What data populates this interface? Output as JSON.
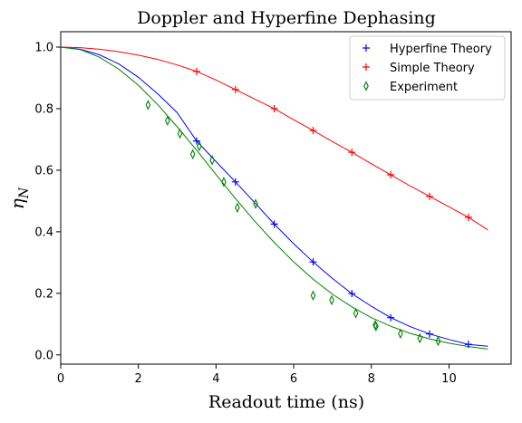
{
  "chart_data": {
    "type": "scatter",
    "title": "Doppler and Hyperfine Dephasing",
    "xlabel": "Readout time (ns)",
    "ylabel": "η_N",
    "xlim": [
      0,
      11.6
    ],
    "ylim": [
      -0.03,
      1.05
    ],
    "x_ticks": [
      "0",
      "2",
      "4",
      "6",
      "8",
      "10"
    ],
    "y_ticks": [
      "0.0",
      "0.2",
      "0.4",
      "0.6",
      "0.8",
      "1.0"
    ],
    "legend_position": "top-right",
    "grid": false,
    "series": [
      {
        "name": "Hyperfine Theory",
        "color": "#0000ff",
        "marker": "plus",
        "points": [
          [
            3.5,
            0.695
          ],
          [
            4.5,
            0.562
          ],
          [
            5.5,
            0.425
          ],
          [
            6.5,
            0.302
          ],
          [
            7.5,
            0.199
          ],
          [
            8.5,
            0.121
          ],
          [
            9.5,
            0.068
          ],
          [
            10.5,
            0.034
          ]
        ],
        "curve": [
          [
            0.0,
            1.0
          ],
          [
            0.5,
            0.993
          ],
          [
            1.0,
            0.975
          ],
          [
            1.5,
            0.945
          ],
          [
            2.0,
            0.902
          ],
          [
            2.5,
            0.848
          ],
          [
            3.0,
            0.787
          ],
          [
            3.5,
            0.695
          ],
          [
            4.0,
            0.628
          ],
          [
            4.5,
            0.562
          ],
          [
            5.0,
            0.494
          ],
          [
            5.5,
            0.425
          ],
          [
            6.0,
            0.361
          ],
          [
            6.5,
            0.302
          ],
          [
            7.0,
            0.248
          ],
          [
            7.5,
            0.199
          ],
          [
            8.0,
            0.158
          ],
          [
            8.5,
            0.121
          ],
          [
            9.0,
            0.092
          ],
          [
            9.5,
            0.068
          ],
          [
            10.0,
            0.05
          ],
          [
            10.5,
            0.034
          ],
          [
            11.0,
            0.028
          ]
        ]
      },
      {
        "name": "Simple Theory",
        "color": "#ff0000",
        "marker": "plus",
        "points": [
          [
            3.5,
            0.921
          ],
          [
            4.5,
            0.862
          ],
          [
            5.5,
            0.8
          ],
          [
            6.5,
            0.729
          ],
          [
            7.5,
            0.658
          ],
          [
            8.5,
            0.585
          ],
          [
            9.5,
            0.515
          ],
          [
            10.5,
            0.447
          ]
        ],
        "curve": [
          [
            0.0,
            1.0
          ],
          [
            0.5,
            0.998
          ],
          [
            1.0,
            0.993
          ],
          [
            1.5,
            0.985
          ],
          [
            2.0,
            0.974
          ],
          [
            2.5,
            0.96
          ],
          [
            3.0,
            0.942
          ],
          [
            3.5,
            0.921
          ],
          [
            4.0,
            0.893
          ],
          [
            4.5,
            0.862
          ],
          [
            5.0,
            0.831
          ],
          [
            5.5,
            0.8
          ],
          [
            6.0,
            0.764
          ],
          [
            6.5,
            0.729
          ],
          [
            7.0,
            0.693
          ],
          [
            7.5,
            0.658
          ],
          [
            8.0,
            0.621
          ],
          [
            8.5,
            0.585
          ],
          [
            9.0,
            0.549
          ],
          [
            9.5,
            0.515
          ],
          [
            10.0,
            0.481
          ],
          [
            10.5,
            0.447
          ],
          [
            11.0,
            0.406
          ]
        ]
      },
      {
        "name": "Experiment",
        "color": "#008000",
        "marker": "thin_diamond",
        "points": [
          [
            2.25,
            0.812
          ],
          [
            2.75,
            0.761
          ],
          [
            3.07,
            0.719
          ],
          [
            3.4,
            0.652
          ],
          [
            3.57,
            0.678
          ],
          [
            3.9,
            0.633
          ],
          [
            4.2,
            0.562
          ],
          [
            4.55,
            0.478
          ],
          [
            5.02,
            0.491
          ],
          [
            6.5,
            0.193
          ],
          [
            6.98,
            0.178
          ],
          [
            7.6,
            0.135
          ],
          [
            8.1,
            0.097
          ],
          [
            8.12,
            0.093
          ],
          [
            8.75,
            0.069
          ],
          [
            9.25,
            0.054
          ],
          [
            9.72,
            0.045
          ]
        ],
        "curve": [
          [
            0.0,
            1.0
          ],
          [
            0.5,
            0.992
          ],
          [
            1.0,
            0.967
          ],
          [
            1.5,
            0.928
          ],
          [
            2.0,
            0.876
          ],
          [
            2.5,
            0.813
          ],
          [
            3.0,
            0.741
          ],
          [
            3.5,
            0.665
          ],
          [
            4.0,
            0.586
          ],
          [
            4.5,
            0.508
          ],
          [
            5.0,
            0.434
          ],
          [
            5.5,
            0.365
          ],
          [
            6.0,
            0.302
          ],
          [
            6.5,
            0.246
          ],
          [
            7.0,
            0.197
          ],
          [
            7.5,
            0.156
          ],
          [
            8.0,
            0.121
          ],
          [
            8.5,
            0.093
          ],
          [
            9.0,
            0.07
          ],
          [
            9.5,
            0.052
          ],
          [
            10.0,
            0.038
          ],
          [
            10.5,
            0.027
          ],
          [
            11.0,
            0.019
          ]
        ]
      }
    ]
  }
}
